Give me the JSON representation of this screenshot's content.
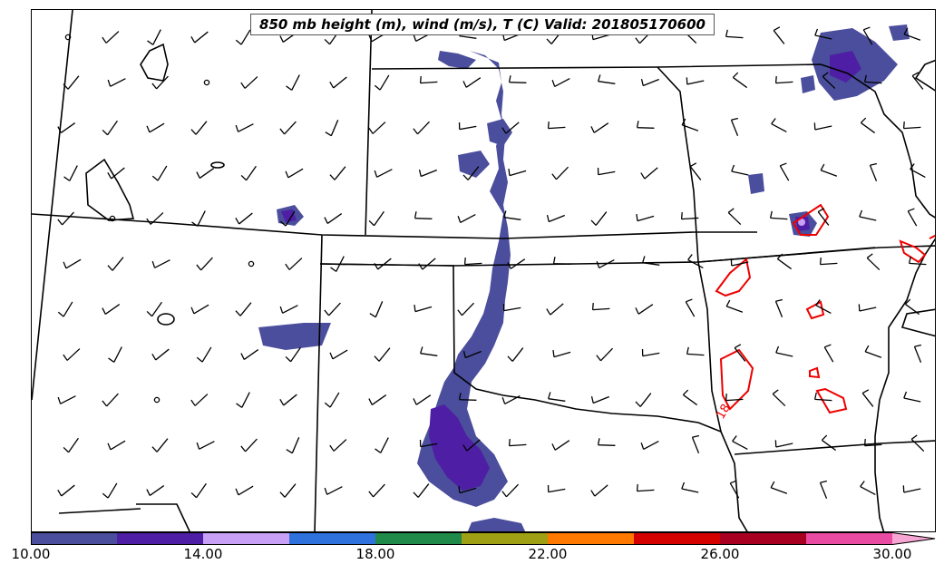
{
  "title": "850 mb height (m), wind (m/s), T (C) Valid: 201805170600",
  "contour_label": "18",
  "colorbar": {
    "tick_labels": [
      "10.00",
      "14.00",
      "18.00",
      "22.00",
      "26.00",
      "30.00"
    ],
    "bins": [
      {
        "from": 10,
        "to": 12,
        "color": "#4b4e9c"
      },
      {
        "from": 12,
        "to": 14,
        "color": "#4e1fa4"
      },
      {
        "from": 14,
        "to": 16,
        "color": "#c8a0f5"
      },
      {
        "from": 16,
        "to": 18,
        "color": "#2f72de"
      },
      {
        "from": 18,
        "to": 20,
        "color": "#1f8a4a"
      },
      {
        "from": 20,
        "to": 22,
        "color": "#9fa013"
      },
      {
        "from": 22,
        "to": 24,
        "color": "#ff7800"
      },
      {
        "from": 24,
        "to": 26,
        "color": "#d50000"
      },
      {
        "from": 26,
        "to": 28,
        "color": "#a70020"
      },
      {
        "from": 28,
        "to": 30,
        "color": "#e94aa2"
      }
    ],
    "extend_color": "#f7a6d4"
  },
  "colors": {
    "fill_primary": "#4b4e9c",
    "fill_secondary": "#4e1fa4",
    "contour": "#ee0000",
    "boundaries": "#000000"
  }
}
